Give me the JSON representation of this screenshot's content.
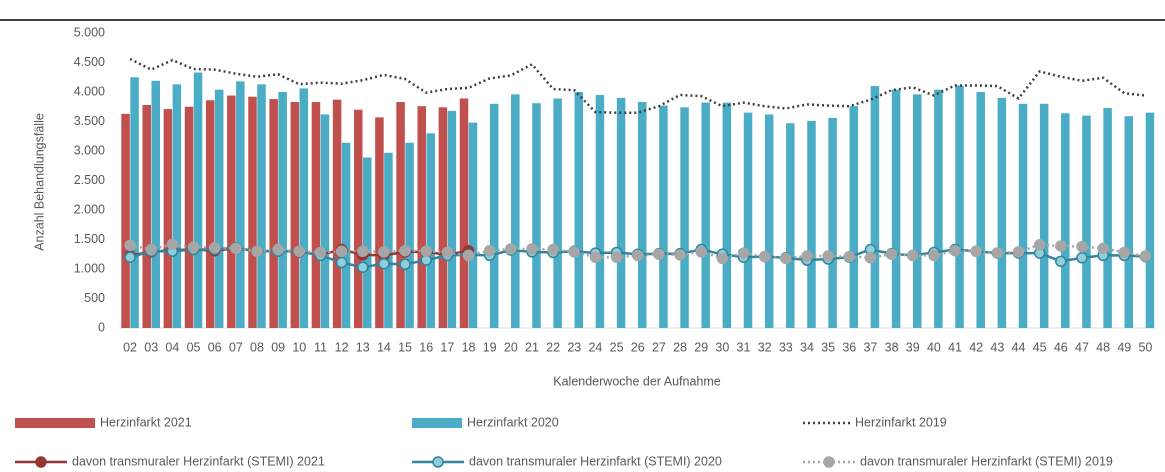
{
  "chart_data": {
    "type": "bar",
    "ylabel": "Anzahl Behandlungsfälle",
    "xlabel": "Kalenderwoche der Aufnahme",
    "categories": [
      "02",
      "03",
      "04",
      "05",
      "06",
      "07",
      "08",
      "09",
      "10",
      "11",
      "12",
      "13",
      "14",
      "15",
      "16",
      "17",
      "18",
      "19",
      "20",
      "21",
      "22",
      "23",
      "24",
      "25",
      "26",
      "27",
      "28",
      "29",
      "30",
      "31",
      "32",
      "33",
      "34",
      "35",
      "36",
      "37",
      "38",
      "39",
      "40",
      "41",
      "42",
      "43",
      "44",
      "45",
      "46",
      "47",
      "48",
      "49",
      "50"
    ],
    "ylim": [
      0,
      5000
    ],
    "yticks": [
      0,
      {
        "value": 500,
        "label": "500"
      },
      {
        "value": 1000,
        "label": "1.000"
      },
      {
        "value": 1500,
        "label": "1.500"
      },
      {
        "value": 2000,
        "label": "2.000"
      },
      {
        "value": 2500,
        "label": "2.500"
      },
      {
        "value": 3000,
        "label": "3.000"
      },
      {
        "value": 3500,
        "label": "3.500"
      },
      {
        "value": 4000,
        "label": "4.000"
      },
      {
        "value": 4500,
        "label": "4.500"
      },
      {
        "value": 5000,
        "label": "5.000"
      }
    ],
    "grid": false,
    "series": [
      {
        "name": "Herzinfarkt 2021",
        "style": "bar",
        "color": "#c0504d",
        "values": [
          3630,
          3780,
          3710,
          3750,
          3860,
          3940,
          3920,
          3880,
          3830,
          3830,
          3870,
          3700,
          3570,
          3830,
          3760,
          3740,
          3890,
          null,
          null,
          null,
          null,
          null,
          null,
          null,
          null,
          null,
          null,
          null,
          null,
          null,
          null,
          null,
          null,
          null,
          null,
          null,
          null,
          null,
          null,
          null,
          null,
          null,
          null,
          null,
          null,
          null,
          null,
          null,
          null
        ]
      },
      {
        "name": "Herzinfarkt 2020",
        "style": "bar",
        "color": "#4bacc6",
        "values": [
          4250,
          4190,
          4130,
          4330,
          4040,
          4180,
          4130,
          4000,
          4060,
          3620,
          3140,
          2890,
          2970,
          3140,
          3300,
          3680,
          3480,
          3800,
          3960,
          3810,
          3890,
          4000,
          3950,
          3900,
          3830,
          3770,
          3740,
          3820,
          3820,
          3650,
          3620,
          3470,
          3510,
          3560,
          3760,
          4100,
          4040,
          3960,
          4040,
          4110,
          4000,
          3900,
          3800,
          3800,
          3640,
          3600,
          3730,
          3590,
          3650
        ]
      },
      {
        "name": "Herzinfarkt 2019",
        "style": "dotted",
        "color": "#404040",
        "marker": false,
        "values": [
          4560,
          4380,
          4540,
          4390,
          4380,
          4310,
          4260,
          4300,
          4130,
          4160,
          4140,
          4200,
          4290,
          4220,
          3990,
          4050,
          4070,
          4230,
          4280,
          4470,
          4050,
          4030,
          3660,
          3650,
          3650,
          3760,
          3950,
          3930,
          3760,
          3820,
          3760,
          3720,
          3790,
          3770,
          3760,
          3870,
          4030,
          4080,
          3940,
          4110,
          4110,
          4100,
          3890,
          4350,
          4260,
          4190,
          4240,
          3980,
          3940
        ]
      },
      {
        "name": "davon transmuraler Herzinfarkt (STEMI) 2021",
        "style": "line",
        "color": "#943634",
        "marker": true,
        "values": [
          1230,
          1290,
          1320,
          1330,
          1310,
          1350,
          1300,
          1310,
          1290,
          1240,
          1330,
          1240,
          1230,
          1290,
          1290,
          1240,
          1310,
          null,
          null,
          null,
          null,
          null,
          null,
          null,
          null,
          null,
          null,
          null,
          null,
          null,
          null,
          null,
          null,
          null,
          null,
          null,
          null,
          null,
          null,
          null,
          null,
          null,
          null,
          null,
          null,
          null,
          null,
          null,
          null
        ]
      },
      {
        "name": "davon transmuraler Herzinfarkt (STEMI) 2020",
        "style": "line",
        "color": "#31859c",
        "marker": true,
        "values": [
          1200,
          1300,
          1300,
          1330,
          1330,
          1360,
          1300,
          1300,
          1300,
          1230,
          1110,
          1030,
          1090,
          1080,
          1150,
          1230,
          1240,
          1230,
          1320,
          1290,
          1280,
          1300,
          1270,
          1280,
          1250,
          1260,
          1260,
          1330,
          1250,
          1200,
          1210,
          1190,
          1150,
          1170,
          1200,
          1330,
          1260,
          1230,
          1280,
          1330,
          1300,
          1270,
          1270,
          1270,
          1130,
          1190,
          1230,
          1230,
          1210
        ]
      },
      {
        "name": "davon transmuraler Herzinfarkt (STEMI) 2019",
        "style": "dotted",
        "color": "#a6a6a6",
        "marker": true,
        "values": [
          1400,
          1330,
          1420,
          1370,
          1360,
          1350,
          1300,
          1330,
          1300,
          1280,
          1300,
          1300,
          1290,
          1310,
          1300,
          1280,
          1230,
          1310,
          1340,
          1340,
          1330,
          1290,
          1200,
          1200,
          1230,
          1250,
          1240,
          1290,
          1180,
          1270,
          1210,
          1180,
          1220,
          1220,
          1210,
          1190,
          1250,
          1230,
          1230,
          1310,
          1300,
          1270,
          1290,
          1410,
          1390,
          1380,
          1350,
          1280,
          1220
        ]
      }
    ]
  }
}
